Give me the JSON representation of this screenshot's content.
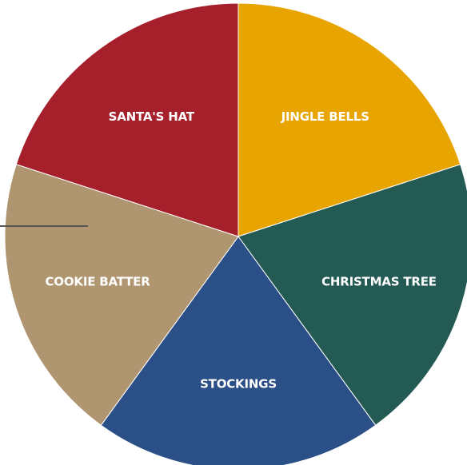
{
  "chart_data": {
    "type": "pie",
    "title": "",
    "slices": [
      {
        "label": "JINGLE BELLS",
        "value": 20,
        "color": "#E8A400"
      },
      {
        "label": "CHRISTMAS TREE",
        "value": 20,
        "color": "#235A53"
      },
      {
        "label": "STOCKINGS",
        "value": 20,
        "color": "#2B4F87"
      },
      {
        "label": "COOKIE BATTER",
        "value": 20,
        "color": "#AF9570"
      },
      {
        "label": "SANTA'S HAT",
        "value": 20,
        "color": "#A6202B"
      }
    ],
    "start_angle": "12 o'clock",
    "direction": "clockwise",
    "legend": "none",
    "label_placement": "inside"
  }
}
